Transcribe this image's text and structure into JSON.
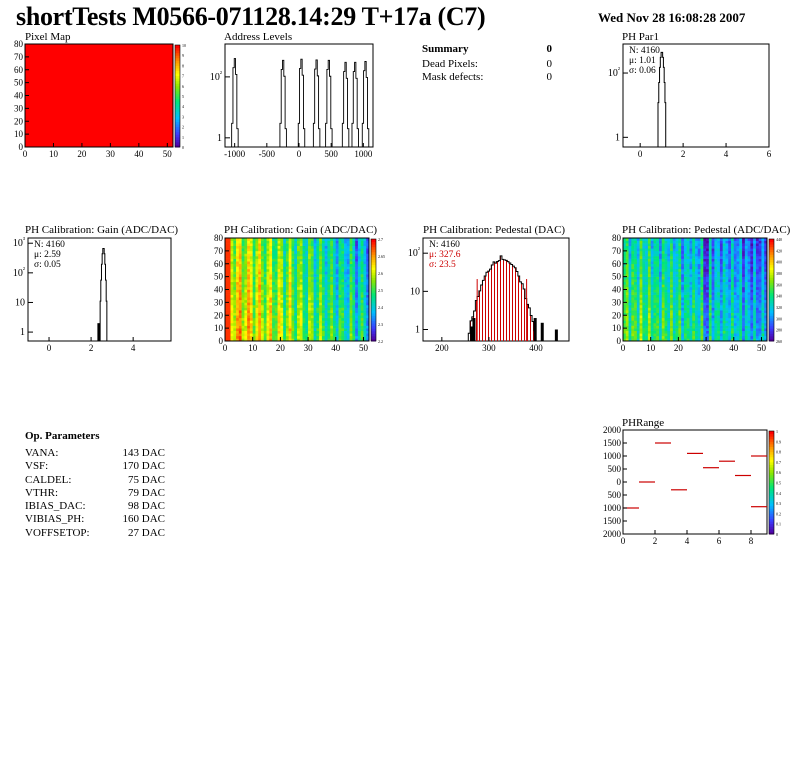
{
  "header": {
    "title": "shortTests M0566-071128.14:29 T+17a (C7)",
    "date": "Wed Nov 28 16:08:28 2007"
  },
  "summary": {
    "title": "Summary",
    "value": "0",
    "rows": [
      {
        "label": "Dead Pixels:",
        "value": "0"
      },
      {
        "label": "Mask defects:",
        "value": "0"
      }
    ]
  },
  "op_params": {
    "title": "Op. Parameters",
    "rows": [
      {
        "label": "VANA:",
        "value": "143 DAC"
      },
      {
        "label": "VSF:",
        "value": "170 DAC"
      },
      {
        "label": "CALDEL:",
        "value": "75 DAC"
      },
      {
        "label": "VTHR:",
        "value": "79 DAC"
      },
      {
        "label": "IBIAS_DAC:",
        "value": "98 DAC"
      },
      {
        "label": "VIBIAS_PH:",
        "value": "160 DAC"
      },
      {
        "label": "VOFFSETOP:",
        "value": "27 DAC"
      }
    ]
  },
  "chart_data": [
    {
      "type": "heatmap",
      "title": "Pixel Map",
      "xlim": [
        0,
        52
      ],
      "ylim": [
        0,
        80
      ],
      "xticks": [
        "0",
        "10",
        "20",
        "30",
        "40",
        "50"
      ],
      "yticks": [
        "0",
        "10",
        "20",
        "30",
        "40",
        "50",
        "60",
        "70",
        "80"
      ],
      "palette_ticks": [
        "0",
        "1",
        "2",
        "3",
        "4",
        "5",
        "6",
        "7",
        "8",
        "9",
        "10"
      ],
      "fill_value": 10,
      "color": "#ff0000"
    },
    {
      "type": "bar",
      "title": "Address Levels",
      "log_y": true,
      "xlim": [
        -1150,
        1150
      ],
      "xticks": [
        "-1000",
        "-500",
        "0",
        "500",
        "1000"
      ],
      "yticks": [
        "1",
        "10²"
      ],
      "peaks": [
        {
          "x": -1000,
          "h": 400
        },
        {
          "x": -250,
          "h": 350
        },
        {
          "x": 35,
          "h": 380
        },
        {
          "x": 270,
          "h": 360
        },
        {
          "x": 460,
          "h": 350
        },
        {
          "x": 720,
          "h": 300
        },
        {
          "x": 870,
          "h": 300
        },
        {
          "x": 1030,
          "h": 320
        }
      ]
    },
    {
      "type": "bar",
      "title": "PH Par1",
      "log_y": true,
      "xlim": [
        -0.8,
        6
      ],
      "xticks": [
        "0",
        "2",
        "4",
        "6"
      ],
      "yticks": [
        "1",
        "10²"
      ],
      "stats": [
        "N: 4160",
        "μ: 1.01",
        "σ: 0.06"
      ],
      "mean": 1.01,
      "sigma": 0.06,
      "peak": 460
    },
    {
      "type": "bar",
      "title": "PH Calibration: Gain (ADC/DAC)",
      "log_y": true,
      "xlim": [
        -1,
        5.8
      ],
      "xticks": [
        "0",
        "2",
        "4"
      ],
      "yticks": [
        "1",
        "10",
        "10²",
        "10³"
      ],
      "stats": [
        "N: 4160",
        "μ: 2.59",
        "σ: 0.05"
      ],
      "mean": 2.59,
      "sigma": 0.05,
      "peak": 700
    },
    {
      "type": "heatmap",
      "title": "PH Calibration: Gain (ADC/DAC)",
      "xlim": [
        0,
        52
      ],
      "ylim": [
        0,
        80
      ],
      "xticks": [
        "0",
        "10",
        "20",
        "30",
        "40",
        "50"
      ],
      "yticks": [
        "0",
        "10",
        "20",
        "30",
        "40",
        "50",
        "60",
        "70",
        "80"
      ],
      "palette_ticks": [
        "2.2",
        "2.3",
        "2.4",
        "2.5",
        "2.6",
        "2.65",
        "2.7"
      ],
      "range": [
        2.2,
        2.7
      ]
    },
    {
      "type": "bar",
      "title": "PH Calibration: Pedestal (DAC)",
      "log_y": true,
      "xlim": [
        160,
        470
      ],
      "xticks": [
        "200",
        "300",
        "400"
      ],
      "yticks": [
        "1",
        "10",
        "10²"
      ],
      "stats": [
        "N: 4160",
        "μ: 327.6",
        "σ: 23.5"
      ],
      "mean": 327.6,
      "sigma": 23.5,
      "peak": 75,
      "cut_lines": [
        275,
        380
      ]
    },
    {
      "type": "heatmap",
      "title": "PH Calibration: Pedestal (ADC/DAC)",
      "xlim": [
        0,
        52
      ],
      "ylim": [
        0,
        80
      ],
      "xticks": [
        "0",
        "10",
        "20",
        "30",
        "40",
        "50"
      ],
      "yticks": [
        "0",
        "10",
        "20",
        "30",
        "40",
        "50",
        "60",
        "70",
        "80"
      ],
      "palette_ticks": [
        "260",
        "280",
        "300",
        "320",
        "340",
        "360",
        "380",
        "400",
        "420",
        "440"
      ],
      "range": [
        260,
        440
      ]
    },
    {
      "type": "scatter",
      "title": "PHRange",
      "xlim": [
        0,
        9
      ],
      "ylim": [
        -2000,
        2000
      ],
      "xticks": [
        "0",
        "2",
        "4",
        "6",
        "8"
      ],
      "yticks": [
        "-2000",
        "-1500",
        "-1000",
        "-500",
        "0",
        "500",
        "1000",
        "1500",
        "2000"
      ],
      "palette_ticks": [
        "0",
        "0.1",
        "0.2",
        "0.3",
        "0.4",
        "0.5",
        "0.6",
        "0.7",
        "0.8",
        "0.9",
        "1"
      ],
      "points": [
        {
          "x": 0.5,
          "y": -1000
        },
        {
          "x": 1.5,
          "y": 0
        },
        {
          "x": 2.5,
          "y": 1500
        },
        {
          "x": 3.5,
          "y": -300
        },
        {
          "x": 4.5,
          "y": 1100
        },
        {
          "x": 5.5,
          "y": 550
        },
        {
          "x": 6.5,
          "y": 800
        },
        {
          "x": 7.5,
          "y": 250
        },
        {
          "x": 8.5,
          "y": 1000
        },
        {
          "x": 8.5,
          "y": -950
        }
      ],
      "mark_color": "#cc0000"
    }
  ]
}
